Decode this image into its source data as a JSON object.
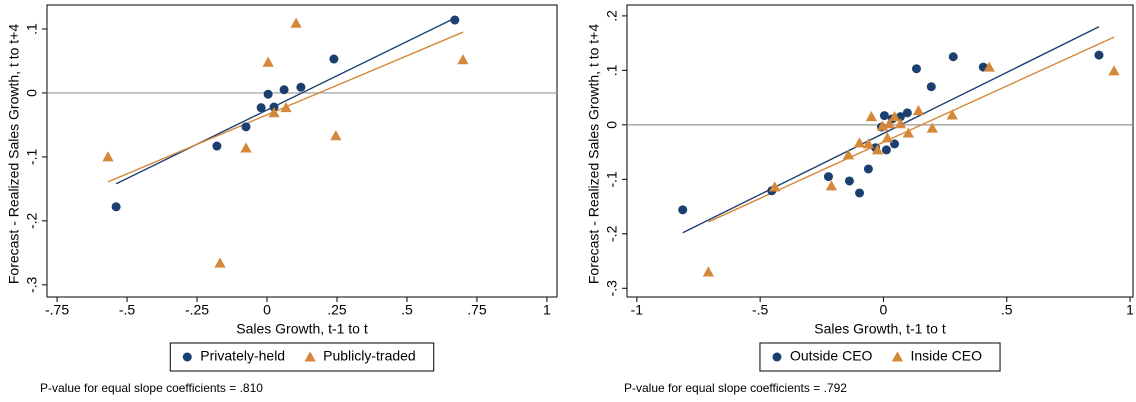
{
  "chart_data": [
    {
      "type": "scatter",
      "xlabel": "Sales Growth, t-1 to t",
      "ylabel": "Forecast - Realized Sales Growth, t to t+4",
      "xlim": [
        -0.786,
        1.036
      ],
      "ylim": [
        -0.319,
        0.1375
      ],
      "xticks": [
        {
          "value": -0.75,
          "label": "-.75"
        },
        {
          "value": -0.5,
          "label": "-.5"
        },
        {
          "value": -0.25,
          "label": "-.25"
        },
        0,
        {
          "value": 0.25,
          "label": ".25"
        },
        {
          "value": 0.5,
          "label": ".5"
        },
        {
          "value": 0.75,
          "label": ".75"
        },
        1
      ],
      "yticks": [
        {
          "value": -0.3,
          "label": "-.3"
        },
        {
          "value": -0.2,
          "label": "-.2"
        },
        {
          "value": -0.1,
          "label": "-.1"
        },
        0,
        {
          "value": 0.1,
          "label": ".1"
        }
      ],
      "hline": 0,
      "series": [
        {
          "name": "Privately-held",
          "color": "#1b3f6e",
          "marker": "circle",
          "x": [
            -0.539,
            -0.179,
            -0.075,
            -0.021,
            0.004,
            0.025,
            0.061,
            0.121,
            0.239,
            0.671
          ],
          "values": [
            -0.178,
            -0.083,
            -0.053,
            -0.023,
            -0.002,
            -0.022,
            0.005,
            0.009,
            0.053,
            0.114
          ]
        },
        {
          "name": "Publicly-traded",
          "color": "#d5873a",
          "marker": "triangle",
          "x": [
            -0.568,
            -0.168,
            -0.075,
            0.004,
            0.025,
            0.068,
            0.104,
            0.246,
            0.7
          ],
          "values": [
            -0.1,
            -0.266,
            -0.086,
            0.048,
            -0.031,
            -0.023,
            0.109,
            -0.067,
            0.052
          ]
        }
      ],
      "fit_lines": [
        {
          "color": "#1b3f6e",
          "x": [
            -0.539,
            0.671
          ],
          "values": [
            -0.142,
            0.117
          ]
        },
        {
          "color": "#d5873a",
          "x": [
            -0.568,
            0.7
          ],
          "values": [
            -0.139,
            0.095
          ]
        }
      ],
      "note": "P-value for equal slope coefficients = .810"
    },
    {
      "type": "scatter",
      "xlabel": "Sales Growth, t-1 to t",
      "ylabel": "Forecast - Realized Sales Growth, t to t+4",
      "xlim": [
        -1.04,
        1.012
      ],
      "ylim": [
        -0.316,
        0.22
      ],
      "xticks": [
        -1,
        {
          "value": -0.5,
          "label": "-.5"
        },
        0,
        {
          "value": 0.5,
          "label": ".5"
        },
        1
      ],
      "yticks": [
        {
          "value": -0.3,
          "label": "-.3"
        },
        {
          "value": -0.2,
          "label": "-.2"
        },
        {
          "value": -0.1,
          "label": "-.1"
        },
        0,
        {
          "value": 0.1,
          "label": ".1"
        },
        {
          "value": 0.2,
          "label": ".2"
        }
      ],
      "hline": 0,
      "series": [
        {
          "name": "Outside CEO",
          "color": "#1b3f6e",
          "marker": "circle",
          "x": [
            -0.814,
            -0.453,
            -0.223,
            -0.138,
            -0.097,
            -0.061,
            -0.032,
            -0.008,
            0.004,
            0.012,
            0.036,
            0.045,
            0.069,
            0.097,
            0.134,
            0.194,
            0.283,
            0.405,
            0.874
          ],
          "values": [
            -0.156,
            -0.121,
            -0.095,
            -0.103,
            -0.125,
            -0.081,
            -0.042,
            -0.004,
            0.017,
            -0.046,
            0.011,
            -0.035,
            0.015,
            0.022,
            0.103,
            0.07,
            0.125,
            0.106,
            0.128
          ]
        },
        {
          "name": "Inside CEO",
          "color": "#d5873a",
          "marker": "triangle",
          "x": [
            -0.71,
            -0.441,
            -0.211,
            -0.142,
            -0.097,
            -0.061,
            -0.049,
            -0.024,
            -0.004,
            0.016,
            0.024,
            0.045,
            0.069,
            0.101,
            0.142,
            0.198,
            0.279,
            0.429,
            0.935
          ],
          "values": [
            -0.27,
            -0.114,
            -0.112,
            -0.055,
            -0.033,
            -0.035,
            0.015,
            -0.046,
            -0.002,
            -0.024,
            0.002,
            0.015,
            0.002,
            -0.015,
            0.026,
            -0.006,
            0.018,
            0.106,
            0.099
          ]
        }
      ],
      "fit_lines": [
        {
          "color": "#1b3f6e",
          "x": [
            -0.814,
            0.874
          ],
          "values": [
            -0.198,
            0.18
          ]
        },
        {
          "color": "#d5873a",
          "x": [
            -0.709,
            0.935
          ],
          "values": [
            -0.178,
            0.161
          ]
        }
      ],
      "note": "P-value for equal slope coefficients = .792"
    }
  ]
}
